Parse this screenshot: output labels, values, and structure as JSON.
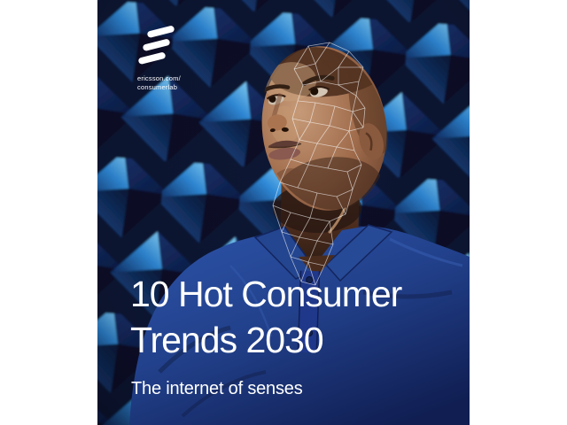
{
  "cover": {
    "header": {
      "logo_icon": "ericsson-logo",
      "website_line1": "ericsson.com/",
      "website_line2": "consumerlab"
    },
    "title": {
      "line1": "10 Hot Consumer",
      "line2": "Trends 2030"
    },
    "subtitle": "The internet of senses",
    "scene_description": "Man with shaved head in dark blue polo shirt looking up to the left inside a blue anechoic chamber of foam pyramids; white facial-recognition wireframe mesh over the right side of his face and neck",
    "colors": {
      "page_margin": "#ffffff",
      "foam_dark_navy": "#0a1430",
      "foam_highlight_cyan": "#6cc6f4",
      "foam_mid_blue": "#1a55a4",
      "shirt_blue": "#22418c",
      "skin_mid": "#9a6a4b",
      "text_white": "#ffffff",
      "mesh_white": "#ffffff"
    }
  }
}
